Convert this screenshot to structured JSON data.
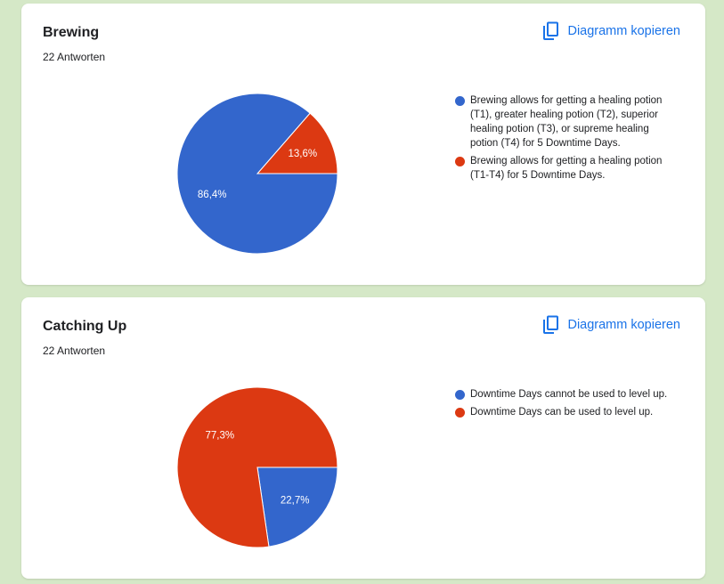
{
  "colors": {
    "blue": "#3366cc",
    "red": "#dc3912",
    "accent": "#1a73e8",
    "background": "#d5e8c7"
  },
  "copy_icon": "copy-content-icon",
  "cards": [
    {
      "title": "Brewing",
      "response_count": "22 Antworten",
      "copy_label": "Diagramm kopieren",
      "chart_data": {
        "type": "pie",
        "categories": [
          "Brewing allows for getting a healing potion (T1), greater healing potion (T2), superior healing potion (T3), or supreme healing potion (T4) for 5 Downtime Days.",
          "Brewing allows for getting a healing potion (T1-T4) for 5 Downtime Days."
        ],
        "values": [
          86.4,
          13.6
        ],
        "labels": [
          "86,4%",
          "13,6%"
        ],
        "colors": [
          "#3366cc",
          "#dc3912"
        ],
        "legend_position": "right"
      }
    },
    {
      "title": "Catching Up",
      "response_count": "22 Antworten",
      "copy_label": "Diagramm kopieren",
      "chart_data": {
        "type": "pie",
        "categories": [
          "Downtime Days cannot be used to level up.",
          "Downtime Days can be used to level up."
        ],
        "values": [
          22.7,
          77.3
        ],
        "labels": [
          "22,7%",
          "77,3%"
        ],
        "colors": [
          "#3366cc",
          "#dc3912"
        ],
        "legend_position": "right"
      }
    }
  ]
}
